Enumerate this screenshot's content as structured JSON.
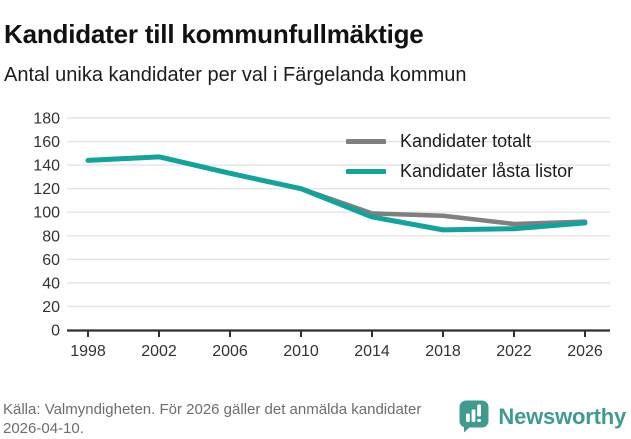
{
  "header": {
    "title": "Kandidater till kommunfullmäktige",
    "subtitle": "Antal unika kandidater per val i Färgelanda kommun"
  },
  "chart_data": {
    "type": "line",
    "x": [
      1998,
      2002,
      2006,
      2010,
      2014,
      2018,
      2022,
      2026
    ],
    "series": [
      {
        "name": "Kandidater totalt",
        "color": "#7f7f7f",
        "values": [
          144,
          147,
          133,
          120,
          99,
          97,
          90,
          92
        ]
      },
      {
        "name": "Kandidater låsta listor",
        "color": "#12a39c",
        "values": [
          144,
          147,
          133,
          120,
          96,
          85,
          86,
          91
        ]
      }
    ],
    "ylim": [
      0,
      180
    ],
    "ytick_step": 20,
    "yticks": [
      0,
      20,
      40,
      60,
      80,
      100,
      120,
      140,
      160,
      180
    ],
    "grid": "horizontal",
    "legend_position": "top-right-inside"
  },
  "footer": {
    "source": "Källa: Valmyndigheten. För 2026 gäller det anmälda kandidater 2026-04-10."
  },
  "logo": {
    "text": "Newsworthy",
    "color": "#3f9b8f",
    "icon": "bar-chart-speech-bubble-icon"
  },
  "colors": {
    "grid": "#e4e4e4",
    "axis": "#2f2f2f",
    "tick_text": "#333333"
  }
}
